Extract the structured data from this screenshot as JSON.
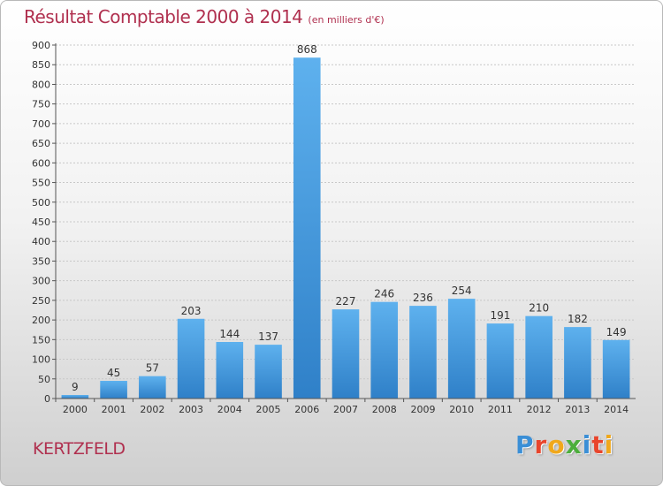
{
  "title": "Résultat Comptable 2000 à 2014",
  "subtitle": "(en milliers d'€)",
  "commune": "KERTZFELD",
  "logo": {
    "letters": [
      "P",
      "r",
      "o",
      "x",
      "i",
      "t",
      "i"
    ],
    "colors": [
      "#3b8fd6",
      "#e8452c",
      "#f0a81c",
      "#4cae3c",
      "#3b8fd6",
      "#e8452c",
      "#f0a81c"
    ]
  },
  "chart_data": {
    "type": "bar",
    "title": "Résultat Comptable 2000 à 2014",
    "subtitle": "(en milliers d'€)",
    "xlabel": "",
    "ylabel": "",
    "categories": [
      "2000",
      "2001",
      "2002",
      "2003",
      "2004",
      "2005",
      "2006",
      "2007",
      "2008",
      "2009",
      "2010",
      "2011",
      "2012",
      "2013",
      "2014"
    ],
    "values": [
      9,
      45,
      57,
      203,
      144,
      137,
      868,
      227,
      246,
      236,
      254,
      191,
      210,
      182,
      149
    ],
    "ylim": [
      0,
      900
    ],
    "yticks": [
      0,
      50,
      100,
      150,
      200,
      250,
      300,
      350,
      400,
      450,
      500,
      550,
      600,
      650,
      700,
      750,
      800,
      850,
      900
    ],
    "grid": true,
    "bar_color": "#3f9ae0"
  }
}
